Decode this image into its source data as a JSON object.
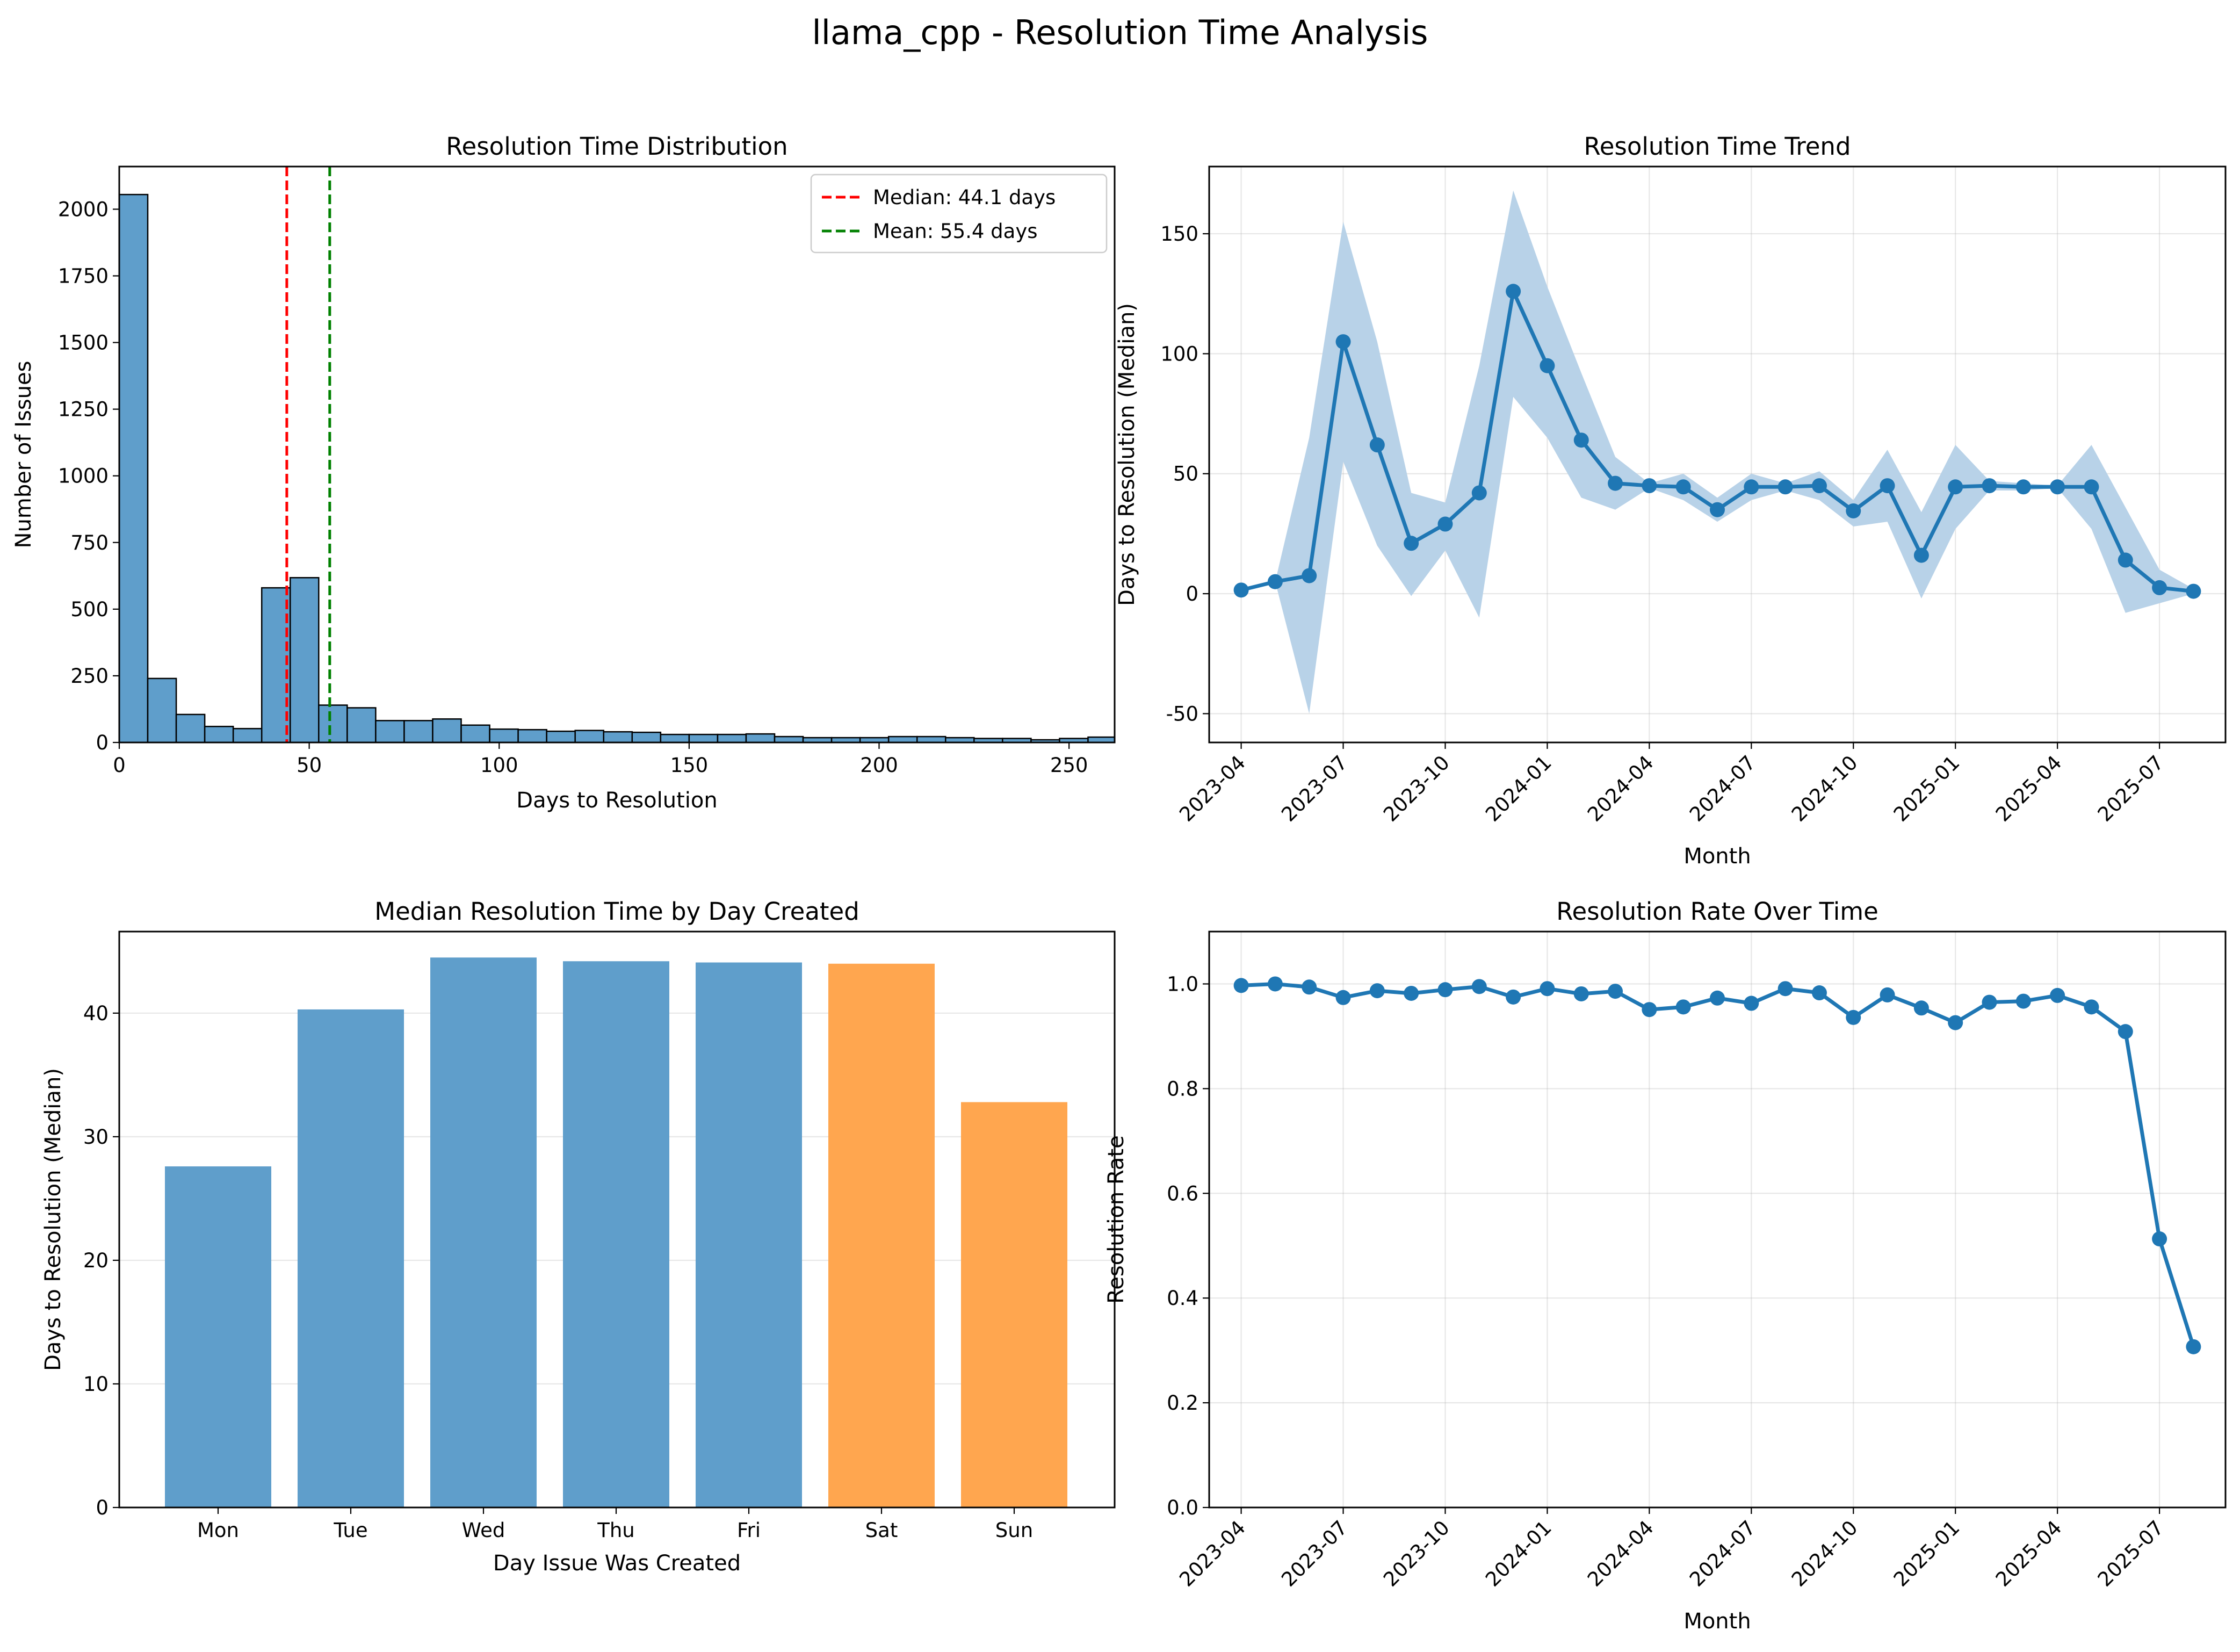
{
  "figure": {
    "title": "llama_cpp - Resolution Time Analysis"
  },
  "colors": {
    "blue": "#1f77b4",
    "bar": "#5f9ecb",
    "orange": "#ffa64f",
    "median": "#ff0000",
    "mean": "#008000",
    "band": "#b8d2e8"
  },
  "chart_data": [
    {
      "type": "bar",
      "id": "hist",
      "title": "Resolution Time Distribution",
      "xlabel": "Days to Resolution",
      "ylabel": "Number of Issues",
      "xlim": [
        0,
        262
      ],
      "ylim": [
        0,
        2160
      ],
      "xticks": [
        0,
        50,
        100,
        150,
        200,
        250
      ],
      "yticks": [
        0,
        250,
        500,
        750,
        1000,
        1250,
        1500,
        1750,
        2000
      ],
      "bin_width": 7.5,
      "bin_starts": [
        0,
        7.5,
        15,
        22.5,
        30,
        37.5,
        45,
        52.5,
        60,
        67.5,
        75,
        82.5,
        90,
        97.5,
        105,
        112.5,
        120,
        127.5,
        135,
        142.5,
        150,
        157.5,
        165,
        172.5,
        180,
        187.5,
        195,
        202.5,
        210,
        217.5,
        225,
        232.5,
        240,
        247.5,
        255
      ],
      "counts": [
        2055,
        240,
        105,
        60,
        52,
        580,
        618,
        140,
        130,
        82,
        82,
        88,
        65,
        50,
        48,
        42,
        45,
        40,
        38,
        30,
        30,
        30,
        32,
        22,
        18,
        18,
        18,
        22,
        22,
        18,
        15,
        15,
        10,
        15,
        20
      ],
      "lines": [
        {
          "name": "Median: 44.1 days",
          "x": 44.1,
          "color": "#ff0000"
        },
        {
          "name": "Mean: 55.4 days",
          "x": 55.4,
          "color": "#008000"
        }
      ],
      "grid": false,
      "legend": "top-right"
    },
    {
      "type": "line",
      "id": "trend",
      "title": "Resolution Time Trend",
      "xlabel": "Month",
      "ylabel": "Days to Resolution (Median)",
      "ylim": [
        -62,
        178
      ],
      "yticks": [
        -50,
        0,
        50,
        100,
        150
      ],
      "xtick_labels": [
        "2023-04",
        "2023-07",
        "2023-10",
        "2024-01",
        "2024-04",
        "2024-07",
        "2024-10",
        "2025-01",
        "2025-04",
        "2025-07"
      ],
      "x": [
        "2023-04",
        "2023-05",
        "2023-06",
        "2023-07",
        "2023-08",
        "2023-09",
        "2023-10",
        "2023-11",
        "2023-12",
        "2024-01",
        "2024-02",
        "2024-03",
        "2024-04",
        "2024-05",
        "2024-06",
        "2024-07",
        "2024-08",
        "2024-09",
        "2024-10",
        "2024-11",
        "2024-12",
        "2025-01",
        "2025-02",
        "2025-03",
        "2025-04",
        "2025-05",
        "2025-06",
        "2025-07",
        "2025-08"
      ],
      "values": [
        1.5,
        5,
        7.5,
        105,
        62,
        21,
        29,
        42,
        126,
        95,
        64,
        46,
        45,
        44.5,
        35,
        44.5,
        44.5,
        45,
        34.5,
        45,
        16,
        44.5,
        45,
        44.5,
        44.5,
        44.5,
        14,
        2.5,
        1
      ],
      "band_upper": [
        1.5,
        5,
        65,
        155,
        105,
        42,
        38,
        95,
        168,
        128,
        92,
        57,
        46,
        50,
        40,
        50,
        46,
        51,
        39,
        60,
        34,
        62,
        47,
        46,
        45,
        62,
        36,
        10,
        2
      ],
      "band_lower": [
        1.5,
        5,
        -50,
        55,
        20,
        -1,
        18,
        -10,
        82,
        65,
        40,
        35,
        44,
        39,
        30,
        39,
        43,
        39,
        28,
        30,
        -2,
        27,
        43,
        43,
        44,
        27,
        -8,
        -4,
        0
      ],
      "grid": true
    },
    {
      "type": "bar",
      "id": "weekday",
      "title": "Median Resolution Time by Day Created",
      "xlabel": "Day Issue Was Created",
      "ylabel": "Days to Resolution (Median)",
      "ylim": [
        0,
        46.6
      ],
      "yticks": [
        0,
        10,
        20,
        30,
        40
      ],
      "categories": [
        "Mon",
        "Tue",
        "Wed",
        "Thu",
        "Fri",
        "Sat",
        "Sun"
      ],
      "values": [
        27.6,
        40.3,
        44.5,
        44.2,
        44.1,
        44.0,
        32.8
      ],
      "colors": [
        "#5f9ecb",
        "#5f9ecb",
        "#5f9ecb",
        "#5f9ecb",
        "#5f9ecb",
        "#ffa64f",
        "#ffa64f"
      ],
      "grid": "y"
    },
    {
      "type": "line",
      "id": "rate",
      "title": "Resolution Rate Over Time",
      "xlabel": "Month",
      "ylabel": "Resolution Rate",
      "ylim": [
        0,
        1.1
      ],
      "yticks": [
        "0.0",
        "0.2",
        "0.4",
        "0.6",
        "0.8",
        "1.0"
      ],
      "xtick_labels": [
        "2023-04",
        "2023-07",
        "2023-10",
        "2024-01",
        "2024-04",
        "2024-07",
        "2024-10",
        "2025-01",
        "2025-04",
        "2025-07"
      ],
      "x": [
        "2023-04",
        "2023-05",
        "2023-06",
        "2023-07",
        "2023-08",
        "2023-09",
        "2023-10",
        "2023-11",
        "2023-12",
        "2024-01",
        "2024-02",
        "2024-03",
        "2024-04",
        "2024-05",
        "2024-06",
        "2024-07",
        "2024-08",
        "2024-09",
        "2024-10",
        "2024-11",
        "2024-12",
        "2025-01",
        "2025-02",
        "2025-03",
        "2025-04",
        "2025-05",
        "2025-06",
        "2025-07",
        "2025-08"
      ],
      "values": [
        0.997,
        1.0,
        0.994,
        0.974,
        0.987,
        0.982,
        0.989,
        0.995,
        0.975,
        0.991,
        0.981,
        0.986,
        0.951,
        0.956,
        0.973,
        0.963,
        0.991,
        0.983,
        0.936,
        0.979,
        0.954,
        0.926,
        0.965,
        0.967,
        0.978,
        0.956,
        0.909,
        0.513,
        0.307
      ],
      "grid": true
    }
  ]
}
